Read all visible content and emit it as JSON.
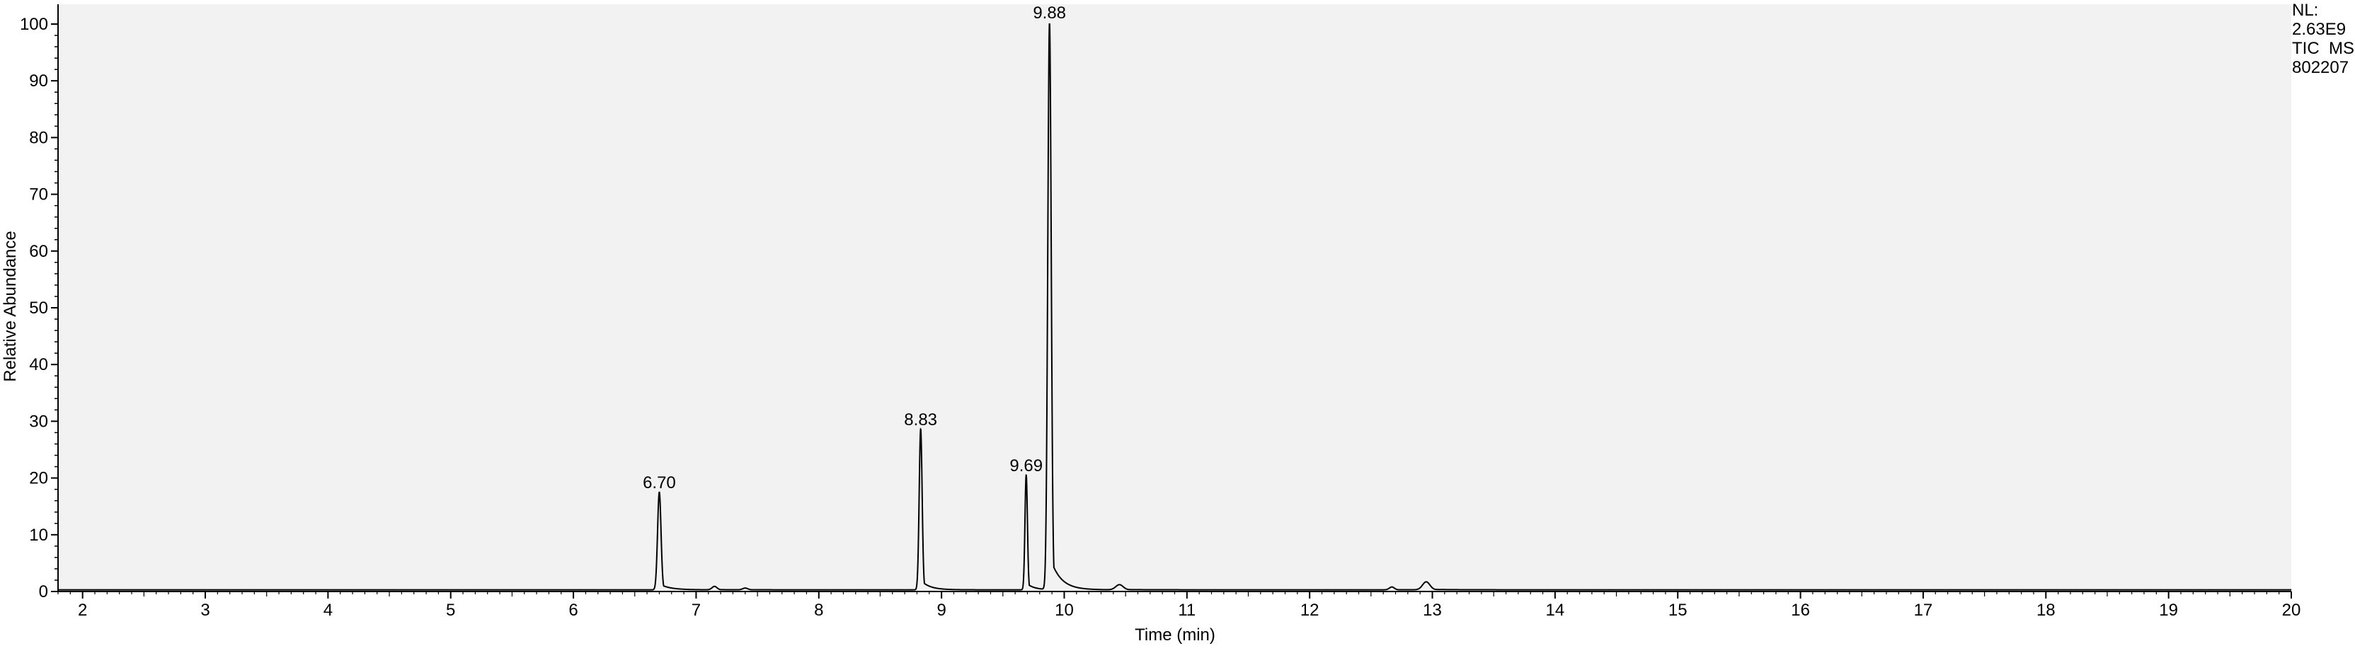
{
  "chart_data": {
    "type": "line",
    "xlabel": "Time (min)",
    "ylabel": "Relative Abundance",
    "xlim": [
      1.8,
      20
    ],
    "ylim": [
      0,
      100
    ],
    "x_ticks": [
      2,
      3,
      4,
      5,
      6,
      7,
      8,
      9,
      10,
      11,
      12,
      13,
      14,
      15,
      16,
      17,
      18,
      19,
      20
    ],
    "y_ticks": [
      0,
      10,
      20,
      30,
      40,
      50,
      60,
      70,
      80,
      90,
      100
    ],
    "info_lines": [
      "NL:",
      "2.63E9",
      "TIC  MS",
      "802207"
    ],
    "colors": {
      "plot_bg": "#f2f2f2",
      "trace": "#000000",
      "axis": "#000000"
    },
    "baseline": 0.3,
    "peaks": [
      {
        "rt": 6.7,
        "label": "6.70",
        "height": 17.2,
        "width": 0.014
      },
      {
        "rt": 8.83,
        "label": "8.83",
        "height": 28.3,
        "width": 0.012
      },
      {
        "rt": 9.69,
        "label": "9.69",
        "height": 20.2,
        "width": 0.01
      },
      {
        "rt": 9.88,
        "label": "9.88",
        "height": 100,
        "width": 0.014
      }
    ],
    "minor_peaks": [
      {
        "rt": 7.15,
        "height": 0.6,
        "width": 0.02
      },
      {
        "rt": 7.4,
        "height": 0.3,
        "width": 0.02
      },
      {
        "rt": 10.45,
        "height": 0.9,
        "width": 0.03
      },
      {
        "rt": 12.67,
        "height": 0.5,
        "width": 0.02
      },
      {
        "rt": 12.95,
        "height": 1.4,
        "width": 0.03
      }
    ]
  }
}
